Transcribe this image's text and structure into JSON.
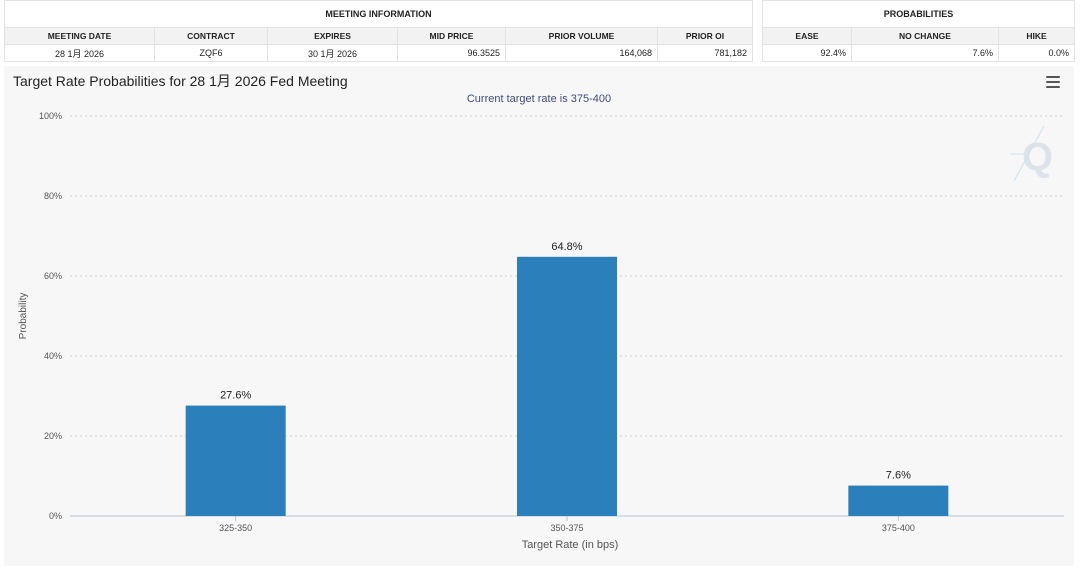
{
  "meeting_info": {
    "title": "MEETING INFORMATION",
    "headers": [
      "MEETING DATE",
      "CONTRACT",
      "EXPIRES",
      "MID PRICE",
      "PRIOR VOLUME",
      "PRIOR OI"
    ],
    "row": [
      "28 1月 2026",
      "ZQF6",
      "30 1月 2026",
      "96.3525",
      "164,068",
      "781,182"
    ]
  },
  "probabilities": {
    "title": "PROBABILITIES",
    "headers": [
      "EASE",
      "NO CHANGE",
      "HIKE"
    ],
    "row": [
      "92.4%",
      "7.6%",
      "0.0%"
    ]
  },
  "chart": {
    "title": "Target Rate Probabilities for 28 1月 2026 Fed Meeting",
    "subtitle": "Current target rate is 375-400",
    "menu_icon": "hamburger-menu-icon",
    "watermark_icon": "cme-q-logo-icon"
  },
  "chart_data": {
    "type": "bar",
    "categories": [
      "325-350",
      "350-375",
      "375-400"
    ],
    "values": [
      27.6,
      64.8,
      7.6
    ],
    "value_labels": [
      "27.6%",
      "64.8%",
      "7.6%"
    ],
    "xlabel": "Target Rate (in bps)",
    "ylabel": "Probability",
    "ylim": [
      0,
      100
    ],
    "yticks": [
      0,
      20,
      40,
      60,
      80,
      100
    ],
    "ytick_labels": [
      "0%",
      "20%",
      "40%",
      "60%",
      "80%",
      "100%"
    ],
    "grid": true,
    "bar_color": "#2b7fba"
  }
}
